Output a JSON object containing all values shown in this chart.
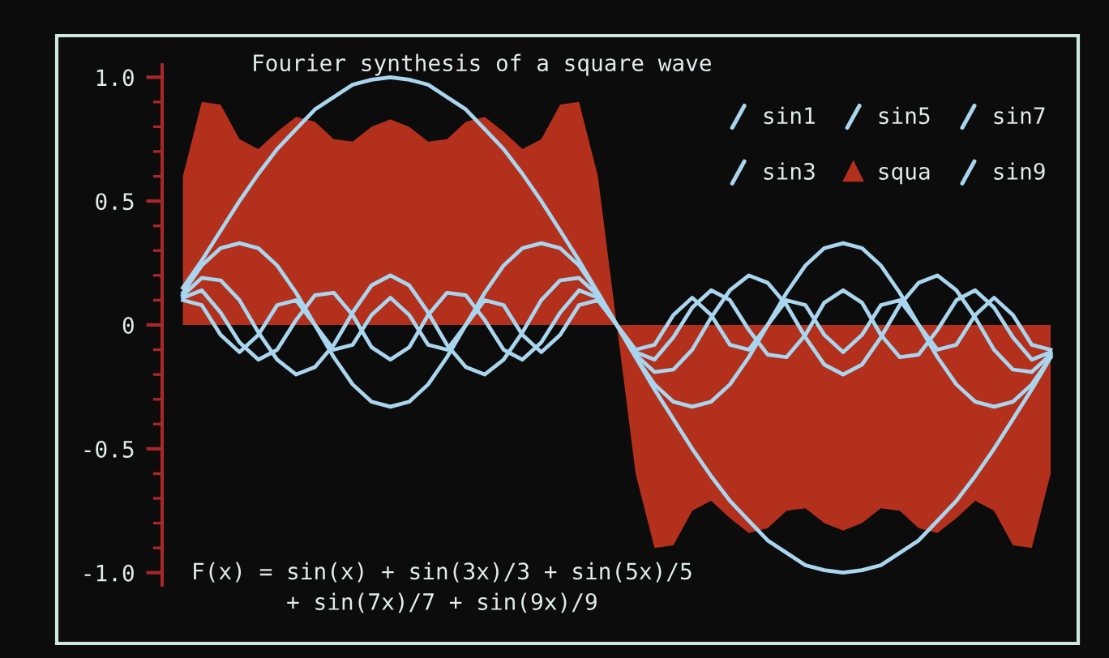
{
  "chart_data": {
    "type": "line",
    "title": "Fourier synthesis of a square wave",
    "categories": [
      null,
      null,
      null,
      null,
      null,
      null,
      null,
      null,
      null,
      null,
      null,
      null,
      null,
      null,
      null,
      null,
      null,
      null,
      null,
      null,
      null,
      null,
      null,
      null,
      null,
      null,
      null,
      null,
      null,
      null,
      null,
      null,
      null,
      null,
      null,
      null,
      null,
      null,
      null,
      null,
      null,
      null,
      null,
      null,
      null,
      null,
      null
    ],
    "series": [
      {
        "name": "sin1",
        "color": "#a9d6ee",
        "values": [
          0.15,
          0.26,
          0.38,
          0.5,
          0.61,
          0.71,
          0.79,
          0.87,
          0.92,
          0.97,
          0.99,
          1,
          0.99,
          0.97,
          0.92,
          0.87,
          0.79,
          0.71,
          0.61,
          0.5,
          0.38,
          0.26,
          0.13,
          0,
          -0.13,
          -0.26,
          -0.38,
          -0.5,
          -0.61,
          -0.71,
          -0.79,
          -0.87,
          -0.92,
          -0.97,
          -0.99,
          -1,
          -0.99,
          -0.97,
          -0.92,
          -0.87,
          -0.79,
          -0.71,
          -0.61,
          -0.5,
          -0.38,
          -0.26,
          -0.13
        ]
      },
      {
        "name": "sin3",
        "color": "#a9d6ee",
        "values": [
          0.13,
          0.24,
          0.31,
          0.33,
          0.31,
          0.24,
          0.13,
          0,
          -0.13,
          -0.24,
          -0.31,
          -0.33,
          -0.31,
          -0.24,
          -0.13,
          0,
          0.13,
          0.24,
          0.31,
          0.33,
          0.31,
          0.24,
          0.13,
          0,
          -0.13,
          -0.24,
          -0.31,
          -0.33,
          -0.31,
          -0.24,
          -0.13,
          0,
          0.13,
          0.24,
          0.31,
          0.33,
          0.31,
          0.24,
          0.13,
          0,
          -0.13,
          -0.24,
          -0.31,
          -0.33,
          -0.31,
          -0.24,
          -0.13
        ]
      },
      {
        "name": "sin5",
        "color": "#a9d6ee",
        "values": [
          0.12,
          0.19,
          0.18,
          0.1,
          -0.03,
          -0.14,
          -0.2,
          -0.17,
          -0.08,
          0.05,
          0.16,
          0.2,
          0.16,
          0.05,
          -0.08,
          -0.17,
          -0.2,
          -0.14,
          -0.03,
          0.1,
          0.18,
          0.19,
          0.12,
          0,
          -0.12,
          -0.19,
          -0.18,
          -0.1,
          0.03,
          0.14,
          0.2,
          0.17,
          0.08,
          -0.05,
          -0.16,
          -0.2,
          -0.16,
          -0.05,
          0.08,
          0.17,
          0.2,
          0.14,
          0.03,
          -0.1,
          -0.18,
          -0.19,
          -0.12
        ]
      },
      {
        "name": "squa",
        "type": "area",
        "color": "#b3301c",
        "values": [
          0.6,
          0.9,
          0.89,
          0.75,
          0.71,
          0.78,
          0.84,
          0.82,
          0.75,
          0.74,
          0.8,
          0.83,
          0.8,
          0.74,
          0.75,
          0.82,
          0.84,
          0.78,
          0.71,
          0.75,
          0.89,
          0.9,
          0.6,
          0,
          -0.6,
          -0.9,
          -0.89,
          -0.75,
          -0.71,
          -0.78,
          -0.84,
          -0.82,
          -0.75,
          -0.74,
          -0.8,
          -0.83,
          -0.8,
          -0.74,
          -0.75,
          -0.82,
          -0.84,
          -0.78,
          -0.71,
          -0.75,
          -0.89,
          -0.9,
          -0.6
        ]
      },
      {
        "name": "sin7",
        "color": "#a9d6ee",
        "values": [
          0.11,
          0.14,
          0.05,
          -0.07,
          -0.14,
          -0.1,
          0.02,
          0.12,
          0.13,
          0.04,
          -0.09,
          -0.14,
          -0.09,
          0.04,
          0.13,
          0.12,
          0.02,
          -0.1,
          -0.14,
          -0.07,
          0.05,
          0.14,
          0.11,
          0,
          -0.11,
          -0.14,
          -0.05,
          0.07,
          0.14,
          0.1,
          -0.02,
          -0.12,
          -0.13,
          -0.04,
          0.09,
          0.14,
          0.09,
          -0.04,
          -0.13,
          -0.12,
          -0.02,
          0.1,
          0.14,
          0.07,
          -0.05,
          -0.14,
          -0.11
        ]
      },
      {
        "name": "sin9",
        "color": "#a9d6ee",
        "values": [
          0.1,
          0.08,
          -0.04,
          -0.11,
          -0.04,
          0.08,
          0.1,
          0,
          -0.1,
          -0.08,
          0.04,
          0.11,
          0.04,
          -0.08,
          -0.1,
          0,
          0.1,
          0.08,
          -0.04,
          -0.11,
          -0.04,
          0.08,
          0.1,
          0,
          -0.1,
          -0.08,
          0.04,
          0.11,
          0.04,
          -0.08,
          -0.1,
          0,
          0.1,
          0.08,
          -0.04,
          -0.11,
          -0.04,
          0.08,
          0.1,
          0,
          -0.1,
          -0.08,
          0.04,
          0.11,
          0.04,
          -0.08,
          -0.1
        ]
      }
    ],
    "ylim": [
      -1.05,
      1.05
    ],
    "yticks": [
      {
        "value": 1,
        "label": "1.0"
      },
      0.5,
      0,
      -0.5,
      {
        "value": -1,
        "label": "-1.0"
      }
    ],
    "legend": "top right",
    "tick_labels": "y",
    "annotations": [
      "F(x) = sin(x) + sin(3x)/3 + sin(5x)/5\n       + sin(7x)/7 + sin(9x)/9"
    ]
  }
}
